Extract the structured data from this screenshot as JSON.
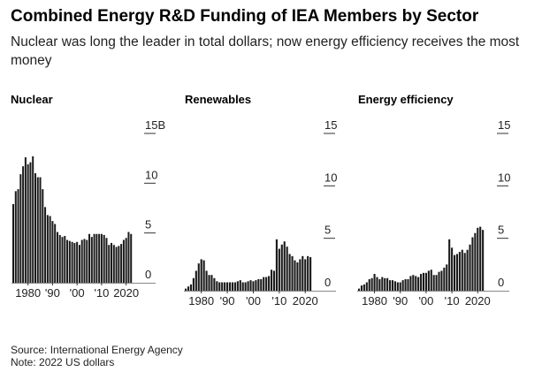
{
  "title": "Combined Energy R&D Funding of IEA Members by Sector",
  "subtitle": "Nuclear was long the leader in total dollars; now energy efficiency receives the most money",
  "source": "Source: International Energy Agency",
  "note": "Note: 2022 US dollars",
  "bar_color": "#1a1a1a",
  "chart_data": [
    {
      "type": "bar",
      "title": "Nuclear",
      "x_start_year": 1974,
      "x_tick_labels": [
        "1980",
        "'90",
        "'00",
        "'10",
        "2020"
      ],
      "y_tick_labels": [
        "0",
        "5",
        "10",
        "15B"
      ],
      "ylim": [
        0,
        15
      ],
      "values": [
        7.9,
        9.2,
        9.4,
        10.9,
        11.7,
        12.6,
        11.9,
        12.1,
        12.7,
        11.0,
        10.6,
        10.6,
        9.4,
        7.6,
        6.8,
        6.7,
        6.2,
        5.9,
        5.1,
        4.8,
        4.6,
        4.7,
        4.3,
        4.2,
        4.1,
        4.0,
        4.1,
        3.8,
        4.3,
        4.4,
        4.3,
        4.9,
        4.6,
        4.9,
        4.9,
        4.9,
        4.9,
        4.8,
        4.5,
        3.8,
        4.0,
        3.8,
        3.6,
        3.7,
        3.9,
        4.3,
        4.5,
        5.1,
        4.9
      ]
    },
    {
      "type": "bar",
      "title": "Renewables",
      "x_start_year": 1974,
      "x_tick_labels": [
        "1980",
        "'90",
        "'00",
        "'10",
        "2020"
      ],
      "y_tick_labels": [
        "0",
        "5",
        "10",
        "15"
      ],
      "ylim": [
        0,
        15
      ],
      "values": [
        0.2,
        0.4,
        0.6,
        1.2,
        1.9,
        2.6,
        3.0,
        2.9,
        1.9,
        1.5,
        1.5,
        1.2,
        0.9,
        0.8,
        0.8,
        0.8,
        0.8,
        0.8,
        0.8,
        0.8,
        0.9,
        1.0,
        0.8,
        0.8,
        0.9,
        1.0,
        0.9,
        1.0,
        1.1,
        1.1,
        1.3,
        1.3,
        1.4,
        2.0,
        1.9,
        4.9,
        4.0,
        4.4,
        4.7,
        4.2,
        3.5,
        3.3,
        2.9,
        2.7,
        3.0,
        3.3,
        3.0,
        3.3,
        3.2
      ]
    },
    {
      "type": "bar",
      "title": "Energy efficiency",
      "x_start_year": 1974,
      "x_tick_labels": [
        "1980",
        "'90",
        "'00",
        "'10",
        "2020"
      ],
      "y_tick_labels": [
        "0",
        "5",
        "10",
        "15"
      ],
      "ylim": [
        0,
        15
      ],
      "values": [
        0.2,
        0.5,
        0.6,
        0.8,
        1.1,
        1.2,
        1.6,
        1.3,
        1.1,
        1.3,
        1.2,
        1.2,
        1.0,
        1.0,
        0.9,
        0.8,
        0.8,
        1.0,
        1.1,
        1.1,
        1.4,
        1.5,
        1.4,
        1.3,
        1.6,
        1.7,
        1.7,
        1.9,
        2.0,
        1.5,
        1.5,
        1.8,
        1.9,
        2.2,
        2.5,
        4.9,
        4.1,
        3.4,
        3.5,
        3.7,
        3.9,
        3.6,
        3.9,
        4.4,
        5.1,
        5.5,
        6.0,
        6.1,
        5.8
      ]
    }
  ]
}
